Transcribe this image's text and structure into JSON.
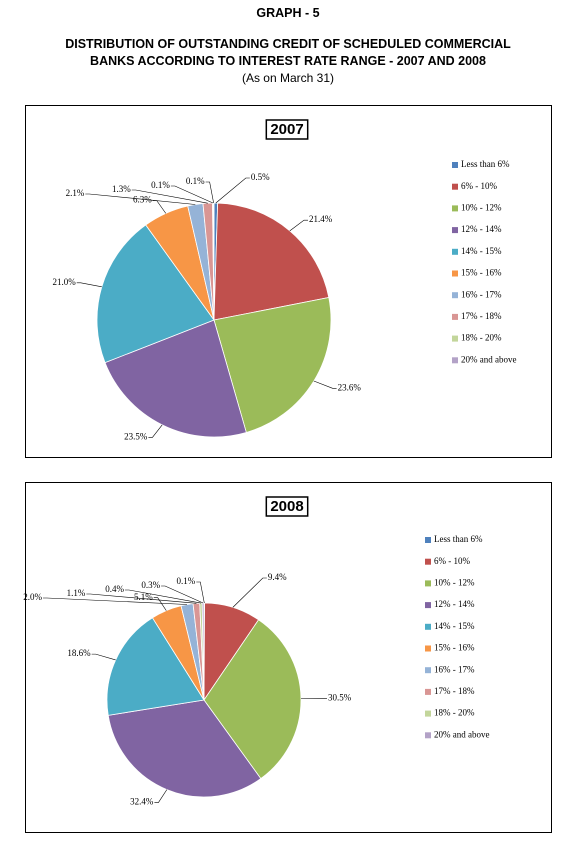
{
  "header": {
    "title": "GRAPH - 5",
    "subtitle": [
      "DISTRIBUTION OF OUTSTANDING CREDIT OF SCHEDULED COMMERCIAL",
      "BANKS ACCORDING TO INTEREST RATE RANGE - 2007 AND 2008"
    ],
    "note": "(As on March 31)"
  },
  "chart_data": [
    {
      "type": "pie",
      "title": "2007",
      "labels": [
        "Less than 6%",
        "6% - 10%",
        "10% - 12%",
        "12% - 14%",
        "14% - 15%",
        "15% - 16%",
        "16% - 17%",
        "17% - 18%",
        "18% - 20%",
        "20% and above"
      ],
      "values": [
        0.5,
        21.4,
        23.6,
        23.5,
        21.0,
        6.3,
        2.1,
        1.3,
        0.1,
        0.1
      ],
      "value_labels": [
        "0.5%",
        "21.4%",
        "23.6%",
        "23.5%",
        "21.0%",
        "6.3%",
        "2.1%",
        "1.3%",
        "0.1%",
        "0.1%"
      ],
      "colors": [
        "#4f81bd",
        "#c0504d",
        "#9bbb59",
        "#8064a2",
        "#4bacc6",
        "#f79646",
        "#95b3d7",
        "#d99694",
        "#c3d69b",
        "#b3a2c7"
      ],
      "legend": "right"
    },
    {
      "type": "pie",
      "title": "2008",
      "labels": [
        "Less than 6%",
        "6% - 10%",
        "10% - 12%",
        "12% - 14%",
        "14% - 15%",
        "15% - 16%",
        "16% - 17%",
        "17% - 18%",
        "18% - 20%",
        "20% and above"
      ],
      "values": [
        0.1,
        9.4,
        30.5,
        32.4,
        18.6,
        5.1,
        2.0,
        1.1,
        0.4,
        0.3
      ],
      "value_labels": [
        "0.1%",
        "9.4%",
        "30.5%",
        "32.4%",
        "18.6%",
        "5.1%",
        "2.0%",
        "1.1%",
        "0.4%",
        "0.3%"
      ],
      "colors": [
        "#4f81bd",
        "#c0504d",
        "#9bbb59",
        "#8064a2",
        "#4bacc6",
        "#f79646",
        "#95b3d7",
        "#d99694",
        "#c3d69b",
        "#b3a2c7"
      ],
      "legend": "right"
    }
  ]
}
